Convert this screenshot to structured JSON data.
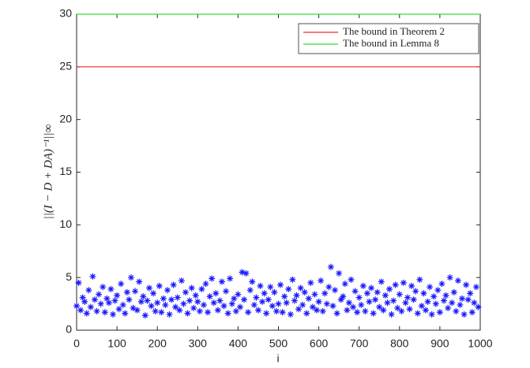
{
  "chart_data": {
    "type": "scatter",
    "xlabel": "i",
    "ylabel": "||(I − D + DA)⁻¹||∞",
    "xlim": [
      0,
      1000
    ],
    "ylim": [
      0,
      30
    ],
    "xticks": [
      0,
      100,
      200,
      300,
      400,
      500,
      600,
      700,
      800,
      900,
      1000
    ],
    "yticks": [
      0,
      5,
      10,
      15,
      20,
      25,
      30
    ],
    "legend": "upper right",
    "lines": [
      {
        "name": "The bound in Theorem 2",
        "color": "#e8302a",
        "x": [
          0,
          1000
        ],
        "values": [
          25,
          25
        ]
      },
      {
        "name": "The bound in Lemma 8",
        "color": "#33dd33",
        "x": [
          0,
          1000
        ],
        "values": [
          30,
          30
        ]
      }
    ],
    "points": {
      "color": "#1a1aff",
      "x": [
        0,
        5,
        10,
        15,
        20,
        25,
        30,
        35,
        40,
        45,
        50,
        55,
        60,
        65,
        70,
        75,
        80,
        85,
        90,
        95,
        100,
        105,
        110,
        115,
        120,
        125,
        130,
        135,
        140,
        145,
        150,
        155,
        160,
        165,
        170,
        175,
        180,
        185,
        190,
        195,
        200,
        205,
        210,
        215,
        220,
        225,
        230,
        235,
        240,
        245,
        250,
        255,
        260,
        265,
        270,
        275,
        280,
        285,
        290,
        295,
        300,
        305,
        310,
        315,
        320,
        325,
        330,
        335,
        340,
        345,
        350,
        355,
        360,
        365,
        370,
        375,
        380,
        385,
        390,
        395,
        400,
        405,
        410,
        415,
        420,
        425,
        430,
        435,
        440,
        445,
        450,
        455,
        460,
        465,
        470,
        475,
        480,
        485,
        490,
        495,
        500,
        505,
        510,
        515,
        520,
        525,
        530,
        535,
        540,
        545,
        550,
        555,
        560,
        565,
        570,
        575,
        580,
        585,
        590,
        595,
        600,
        605,
        610,
        615,
        620,
        625,
        630,
        635,
        640,
        645,
        650,
        655,
        660,
        665,
        670,
        675,
        680,
        685,
        690,
        695,
        700,
        705,
        710,
        715,
        720,
        725,
        730,
        735,
        740,
        745,
        750,
        755,
        760,
        765,
        770,
        775,
        780,
        785,
        790,
        795,
        800,
        805,
        810,
        815,
        820,
        825,
        830,
        835,
        840,
        845,
        850,
        855,
        860,
        865,
        870,
        875,
        880,
        885,
        890,
        895,
        900,
        905,
        910,
        915,
        920,
        925,
        930,
        935,
        940,
        945,
        950,
        955,
        960,
        965,
        970,
        975,
        980,
        985,
        990,
        995
      ],
      "values": [
        2.3,
        4.5,
        1.9,
        3.1,
        2.7,
        1.6,
        3.8,
        2.2,
        5.1,
        2.9,
        1.8,
        3.4,
        2.5,
        4.1,
        1.7,
        3.0,
        2.6,
        3.9,
        1.5,
        2.8,
        3.3,
        2.0,
        4.4,
        2.4,
        1.6,
        3.6,
        2.9,
        5.0,
        2.1,
        3.7,
        1.9,
        4.6,
        2.7,
        3.2,
        1.4,
        2.8,
        4.0,
        2.3,
        3.5,
        1.8,
        2.6,
        4.2,
        1.7,
        3.0,
        2.4,
        3.8,
        1.5,
        2.9,
        4.3,
        2.2,
        3.1,
        1.9,
        4.7,
        2.5,
        3.6,
        1.6,
        2.8,
        4.0,
        2.1,
        3.3,
        2.7,
        1.8,
        3.9,
        2.4,
        4.4,
        1.7,
        3.2,
        4.9,
        2.6,
        3.5,
        1.9,
        2.8,
        4.6,
        2.3,
        3.7,
        1.6,
        4.9,
        2.5,
        3.0,
        1.8,
        3.4,
        2.2,
        5.5,
        2.9,
        5.4,
        1.7,
        3.8,
        4.6,
        2.4,
        3.1,
        1.9,
        4.2,
        2.7,
        3.5,
        1.6,
        2.9,
        4.1,
        2.3,
        3.6,
        1.8,
        2.5,
        4.3,
        1.7,
        3.2,
        2.6,
        3.9,
        1.5,
        4.8,
        2.8,
        3.3,
        2.0,
        4.0,
        2.4,
        3.6,
        1.6,
        3.0,
        4.5,
        2.2,
        3.4,
        1.9,
        2.7,
        4.7,
        1.8,
        3.5,
        2.5,
        4.1,
        6.0,
        2.3,
        3.8,
        1.6,
        5.4,
        2.9,
        3.2,
        4.4,
        1.9,
        2.6,
        4.8,
        2.2,
        3.7,
        1.7,
        3.1,
        2.4,
        4.2,
        1.8,
        3.5,
        2.7,
        4.0,
        1.6,
        2.9,
        3.6,
        2.2,
        4.6,
        1.9,
        3.3,
        2.6,
        3.9,
        1.5,
        2.8,
        4.3,
        2.1,
        3.4,
        1.8,
        4.5,
        2.6,
        3.1,
        2.0,
        4.2,
        2.9,
        3.7,
        1.6,
        4.8,
        2.3,
        3.5,
        1.9,
        2.7,
        4.1,
        1.5,
        3.2,
        2.5,
        3.8,
        1.7,
        4.4,
        2.8,
        3.3,
        2.1,
        5.0,
        2.6,
        3.6,
        1.8,
        4.7,
        2.4,
        3.0,
        1.5,
        4.3,
        2.9,
        3.5,
        1.7,
        2.6,
        4.1,
        2.2
      ]
    }
  }
}
